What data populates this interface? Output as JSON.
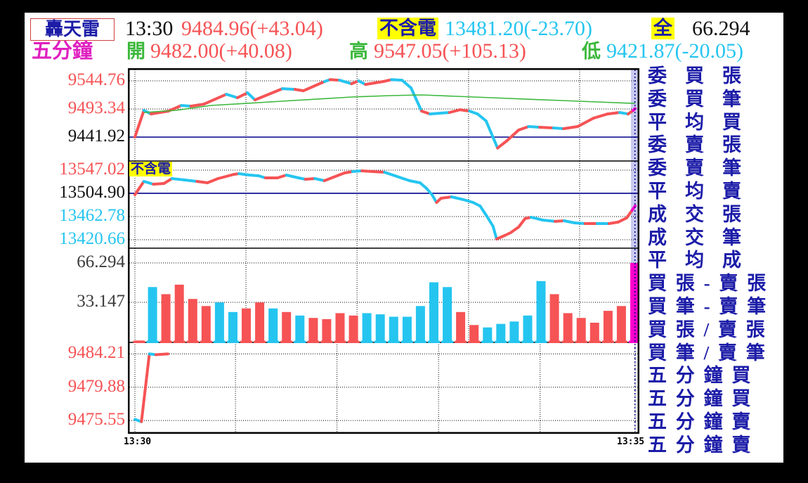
{
  "palette": {
    "red": "#f65355",
    "cyan": "#25c5f0",
    "green": "#3db83d",
    "navy": "#00008b",
    "magenta": "#ff00cc",
    "menu_blue": "#1c1ca8",
    "yellow": "#ffff00",
    "band": "#c9c9f0",
    "dark": "#3c3c3c",
    "black": "#111111"
  },
  "header": {
    "brand": "轟天雷",
    "period": "五分鐘",
    "time": "13:30",
    "index": "9484.96(+43.04)",
    "ex_label": "不含電",
    "ex_index": "13481.20(-23.70)",
    "total_label": "全",
    "total_value": "66.294",
    "open_label": "開",
    "open": "9482.00(+40.08)",
    "high_label": "高",
    "high": "9547.05(+105.13)",
    "low_label": "低",
    "low": "9421.87(-20.05)"
  },
  "x_axis": {
    "start": "13:30",
    "end": "13:35"
  },
  "right_menu": {
    "items": [
      "委買張數",
      "委買筆數",
      "平均買張",
      "委賣張數",
      "委賣筆數",
      "平均賣張",
      "成交張數",
      "成交筆數",
      "平均成交",
      "買張-賣張",
      "買筆-賣筆",
      "買張/賣張",
      "買筆/賣筆",
      "五分鐘買張",
      "五分鐘買筆",
      "五分鐘賣張",
      "五分鐘賣筆"
    ]
  },
  "chart_data": [
    {
      "name": "weighted-index",
      "type": "line",
      "ylim": [
        9398.2,
        9565.4
      ],
      "yticks": [
        {
          "label": "9544.76",
          "v": 9544.76,
          "c": "red",
          "grid": true
        },
        {
          "label": "9493.34",
          "v": 9493.34,
          "c": "red",
          "grid": true
        },
        {
          "label": "9441.92",
          "v": 9441.92,
          "c": "black",
          "grid": false
        }
      ],
      "refline": 9441.92,
      "vgrid": [
        0,
        0.222,
        0.444,
        0.667,
        0.889
      ],
      "series": [
        {
          "name": "price",
          "pts": [
            [
              0,
              9441.9,
              "R"
            ],
            [
              0.018,
              9490.8,
              "R"
            ],
            [
              0.032,
              9484.3,
              "C"
            ],
            [
              0.067,
              9489.5,
              "R"
            ],
            [
              0.093,
              9499.8,
              "R"
            ],
            [
              0.112,
              9498.5,
              "C"
            ],
            [
              0.138,
              9502.3,
              "R"
            ],
            [
              0.183,
              9520.3,
              "R"
            ],
            [
              0.205,
              9513.9,
              "C"
            ],
            [
              0.225,
              9522.9,
              "R"
            ],
            [
              0.24,
              9510,
              "C"
            ],
            [
              0.295,
              9530.6,
              "R"
            ],
            [
              0.32,
              9529.3,
              "C"
            ],
            [
              0.337,
              9526.7,
              "R"
            ],
            [
              0.379,
              9543.5,
              "R"
            ],
            [
              0.39,
              9547,
              "C"
            ],
            [
              0.409,
              9546,
              "R"
            ],
            [
              0.433,
              9539.6,
              "C"
            ],
            [
              0.447,
              9544.8,
              "R"
            ],
            [
              0.461,
              9538.3,
              "C"
            ],
            [
              0.496,
              9543.5,
              "R"
            ],
            [
              0.513,
              9547,
              "R"
            ],
            [
              0.534,
              9546,
              "C"
            ],
            [
              0.552,
              9531.9,
              "C"
            ],
            [
              0.573,
              9489.5,
              "C"
            ],
            [
              0.59,
              9484.3,
              "R"
            ],
            [
              0.629,
              9486.9,
              "C"
            ],
            [
              0.65,
              9492,
              "R"
            ],
            [
              0.669,
              9489.5,
              "R"
            ],
            [
              0.685,
              9484.3,
              "C"
            ],
            [
              0.702,
              9471.5,
              "C"
            ],
            [
              0.725,
              9421.9,
              "C"
            ],
            [
              0.744,
              9435.5,
              "R"
            ],
            [
              0.767,
              9454.8,
              "R"
            ],
            [
              0.787,
              9461.2,
              "R"
            ],
            [
              0.809,
              9459.9,
              "C"
            ],
            [
              0.837,
              9458.6,
              "R"
            ],
            [
              0.857,
              9457.3,
              "C"
            ],
            [
              0.885,
              9461.2,
              "R"
            ],
            [
              0.917,
              9476.6,
              "R"
            ],
            [
              0.945,
              9484.3,
              "R"
            ],
            [
              0.969,
              9486.9,
              "R"
            ],
            [
              0.986,
              9484.3,
              "C"
            ],
            [
              0.996,
              9490.8,
              "R"
            ],
            [
              1,
              9494,
              "M"
            ]
          ]
        },
        {
          "name": "day-average",
          "style": "avg",
          "pts": [
            [
              0.018,
              9486.9
            ],
            [
              0.081,
              9490.8
            ],
            [
              0.152,
              9499.8
            ],
            [
              0.222,
              9503.6
            ],
            [
              0.292,
              9507.5
            ],
            [
              0.362,
              9511.3
            ],
            [
              0.433,
              9515.2
            ],
            [
              0.51,
              9517.8
            ],
            [
              0.573,
              9519.1
            ],
            [
              0.643,
              9516.5
            ],
            [
              0.713,
              9513.9
            ],
            [
              0.784,
              9511.3
            ],
            [
              0.854,
              9508.8
            ],
            [
              0.924,
              9506.2
            ],
            [
              1,
              9503.6
            ]
          ]
        }
      ]
    },
    {
      "name": "ex-electronics-index",
      "label": "不含電",
      "type": "line",
      "ylim": [
        13405.3,
        13563.6
      ],
      "yticks": [
        {
          "label": "13547.02",
          "v": 13547.02,
          "c": "red",
          "grid": true
        },
        {
          "label": "13504.90",
          "v": 13504.9,
          "c": "black",
          "grid": false
        },
        {
          "label": "13462.78",
          "v": 13462.78,
          "c": "cyan",
          "grid": true
        },
        {
          "label": "13420.66",
          "v": 13420.66,
          "c": "cyan",
          "grid": true
        }
      ],
      "refline": 13504.9,
      "vgrid": [
        0,
        0.222,
        0.444,
        0.667,
        0.889
      ],
      "series": [
        {
          "name": "price",
          "pts": [
            [
              0,
              13502.3,
              "R"
            ],
            [
              0.018,
              13526.6,
              "R"
            ],
            [
              0.037,
              13521.5,
              "C"
            ],
            [
              0.058,
              13522.8,
              "R"
            ],
            [
              0.074,
              13531.7,
              "R"
            ],
            [
              0.098,
              13529.2,
              "C"
            ],
            [
              0.124,
              13526.6,
              "C"
            ],
            [
              0.145,
              13524,
              "R"
            ],
            [
              0.166,
              13531.7,
              "R"
            ],
            [
              0.198,
              13539.4,
              "R"
            ],
            [
              0.208,
              13540.6,
              "R"
            ],
            [
              0.229,
              13538.1,
              "C"
            ],
            [
              0.247,
              13536.8,
              "C"
            ],
            [
              0.261,
              13533,
              "C"
            ],
            [
              0.285,
              13533,
              "R"
            ],
            [
              0.303,
              13538.1,
              "R"
            ],
            [
              0.327,
              13533,
              "C"
            ],
            [
              0.341,
              13530.4,
              "C"
            ],
            [
              0.36,
              13531.7,
              "R"
            ],
            [
              0.379,
              13527.9,
              "C"
            ],
            [
              0.397,
              13534.3,
              "R"
            ],
            [
              0.419,
              13541.9,
              "R"
            ],
            [
              0.435,
              13544.5,
              "R"
            ],
            [
              0.454,
              13545.7,
              "C"
            ],
            [
              0.475,
              13544.5,
              "R"
            ],
            [
              0.499,
              13543.2,
              "R"
            ],
            [
              0.524,
              13535.5,
              "C"
            ],
            [
              0.549,
              13527.9,
              "C"
            ],
            [
              0.57,
              13524,
              "C"
            ],
            [
              0.583,
              13513.8,
              "C"
            ],
            [
              0.594,
              13502.3,
              "C"
            ],
            [
              0.603,
              13488.3,
              "C"
            ],
            [
              0.612,
              13495.9,
              "R"
            ],
            [
              0.633,
              13498.5,
              "R"
            ],
            [
              0.657,
              13493.4,
              "C"
            ],
            [
              0.676,
              13488.3,
              "C"
            ],
            [
              0.69,
              13481.9,
              "C"
            ],
            [
              0.704,
              13462.8,
              "C"
            ],
            [
              0.716,
              13444.9,
              "C"
            ],
            [
              0.723,
              13421.9,
              "C"
            ],
            [
              0.739,
              13428.3,
              "R"
            ],
            [
              0.751,
              13433.4,
              "R"
            ],
            [
              0.767,
              13443.6,
              "R"
            ],
            [
              0.78,
              13459,
              "R"
            ],
            [
              0.792,
              13461.5,
              "R"
            ],
            [
              0.815,
              13456.4,
              "C"
            ],
            [
              0.84,
              13453.9,
              "C"
            ],
            [
              0.858,
              13455.1,
              "R"
            ],
            [
              0.879,
              13451.3,
              "C"
            ],
            [
              0.9,
              13450,
              "C"
            ],
            [
              0.924,
              13450,
              "R"
            ],
            [
              0.948,
              13450,
              "C"
            ],
            [
              0.966,
              13452.6,
              "R"
            ],
            [
              0.983,
              13460.3,
              "R"
            ],
            [
              0.994,
              13474.3,
              "R"
            ],
            [
              1,
              13482,
              "M"
            ]
          ]
        }
      ]
    },
    {
      "name": "five-min-volume-bars",
      "type": "bar",
      "ylim": [
        0,
        78.7
      ],
      "yticks": [
        {
          "label": "66.294",
          "v": 66.294,
          "c": "dark",
          "grid": true
        },
        {
          "label": "33.147",
          "v": 33.147,
          "c": "dark",
          "grid": true
        }
      ],
      "vgrid": [
        0,
        0.222,
        0.444,
        0.667,
        0.889
      ],
      "bars": [
        [
          1,
          "R"
        ],
        [
          46,
          "C"
        ],
        [
          40,
          "R"
        ],
        [
          48,
          "R"
        ],
        [
          36,
          "R"
        ],
        [
          30,
          "R"
        ],
        [
          33,
          "C"
        ],
        [
          25,
          "C"
        ],
        [
          28,
          "R"
        ],
        [
          33,
          "R"
        ],
        [
          28,
          "C"
        ],
        [
          25,
          "R"
        ],
        [
          22,
          "C"
        ],
        [
          20,
          "R"
        ],
        [
          19,
          "R"
        ],
        [
          24,
          "R"
        ],
        [
          22,
          "R"
        ],
        [
          24,
          "C"
        ],
        [
          23,
          "C"
        ],
        [
          21,
          "C"
        ],
        [
          21,
          "C"
        ],
        [
          30,
          "C"
        ],
        [
          50,
          "C"
        ],
        [
          46,
          "C"
        ],
        [
          25,
          "R"
        ],
        [
          14,
          "R"
        ],
        [
          12,
          "C"
        ],
        [
          15,
          "C"
        ],
        [
          17,
          "C"
        ],
        [
          22,
          "C"
        ],
        [
          51,
          "C"
        ],
        [
          40,
          "R"
        ],
        [
          24,
          "R"
        ],
        [
          20,
          "R"
        ],
        [
          16,
          "R"
        ],
        [
          26,
          "R"
        ],
        [
          30,
          "R"
        ],
        [
          66.3,
          "M"
        ]
      ]
    },
    {
      "name": "five-min-line",
      "type": "line",
      "ylim": [
        9474.1,
        9485.7
      ],
      "yticks": [
        {
          "label": "9484.21",
          "v": 9484.21,
          "c": "red",
          "grid": true
        },
        {
          "label": "9479.88",
          "v": 9479.88,
          "c": "red",
          "grid": true
        },
        {
          "label": "9475.55",
          "v": 9475.55,
          "c": "red",
          "grid": true
        }
      ],
      "vgrid": [
        0,
        0.201,
        0.404,
        0.607,
        0.81,
        1.0
      ],
      "series": [
        {
          "name": "price",
          "pts": [
            [
              0,
              9475.7,
              "C"
            ],
            [
              0.013,
              9475.4,
              "C"
            ],
            [
              0.029,
              9484.2,
              "R"
            ],
            [
              0.042,
              9484.1,
              "C"
            ],
            [
              0.066,
              9484.2,
              "R"
            ]
          ]
        }
      ]
    }
  ]
}
